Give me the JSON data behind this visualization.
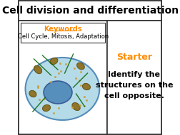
{
  "title": "Cell division and differentiation",
  "title_fontsize": 10,
  "title_fontweight": "bold",
  "keywords_label": "Keywords",
  "keywords_text": "Cell Cycle, Mitosis, Adaptation",
  "keywords_color": "#FF8C00",
  "starter_label": "Starter",
  "starter_text": "Identify the\nstructures on the\ncell opposite.",
  "starter_color": "#FF8C00",
  "cell_fill": "#ADD8E6",
  "cell_edge": "#4682B4",
  "nucleus_fill": "#4682B4",
  "nucleus_edge": "#2F4F8F",
  "organelle_fill": "#8B6914",
  "organelle_edge": "#5C4A0A",
  "bg_color": "#FFFFFF",
  "box_edge": "#333333",
  "small_dot_color": "#C8A040",
  "spindle_color": "#006400"
}
